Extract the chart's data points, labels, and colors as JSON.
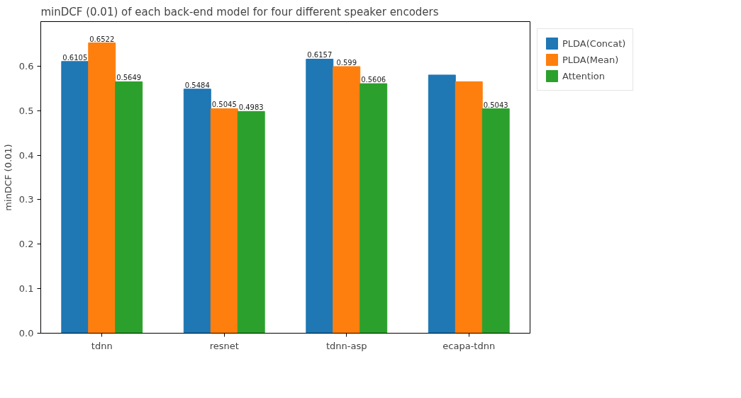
{
  "chart_data": {
    "type": "bar",
    "title": "minDCF (0.01) of each back-end model for four different speaker encoders",
    "ylabel": "minDCF (0.01)",
    "categories": [
      "tdnn",
      "resnet",
      "tdnn-asp",
      "ecapa-tdnn"
    ],
    "series": [
      {
        "name": "PLDA(Concat)",
        "color": "#1f77b4",
        "values": [
          0.6105,
          0.5484,
          0.6157,
          0.58
        ],
        "value_labels": [
          "0.6105",
          "0.5484",
          "0.6157",
          null
        ]
      },
      {
        "name": "PLDA(Mean)",
        "color": "#ff7f0e",
        "values": [
          0.6522,
          0.5045,
          0.599,
          0.565
        ],
        "value_labels": [
          "0.6522",
          "0.5045",
          "0.599",
          null
        ]
      },
      {
        "name": "Attention",
        "color": "#2ca02c",
        "values": [
          0.5649,
          0.4983,
          0.5606,
          0.5043
        ],
        "value_labels": [
          "0.5649",
          "0.4983",
          "0.5606",
          "0.5043"
        ]
      }
    ],
    "ylim": [
      0,
      0.7
    ],
    "yticks": [
      {
        "value": 0,
        "label": "0.0"
      },
      0.1,
      0.2,
      0.3,
      0.4,
      0.5,
      0.6
    ],
    "grid": false,
    "legend": "top right"
  }
}
